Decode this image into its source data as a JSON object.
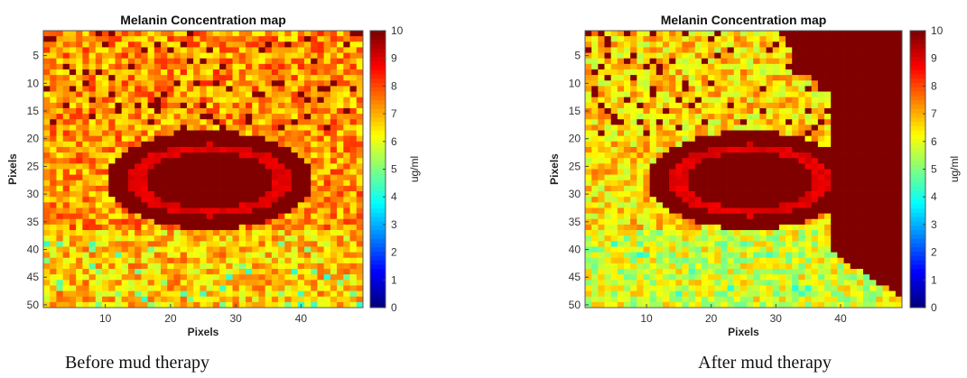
{
  "chart_data": [
    {
      "type": "heatmap",
      "title": "Melanin Concentration map",
      "xlabel": "Pixels",
      "ylabel": "Pixels",
      "caption": "Before mud therapy",
      "xlim": [
        0.5,
        49.5
      ],
      "ylim": [
        0.5,
        50.5
      ],
      "x_ticks": [
        10,
        20,
        30,
        40
      ],
      "y_ticks": [
        5,
        10,
        15,
        20,
        25,
        30,
        35,
        40,
        45,
        50
      ],
      "grid_size": [
        49,
        50
      ],
      "colorbar": {
        "label": "ug/ml",
        "range": [
          0,
          10
        ],
        "ticks": [
          0,
          1,
          2,
          3,
          4,
          5,
          6,
          7,
          8,
          9,
          10
        ],
        "colormap": "jet"
      },
      "regions": {
        "background_top": 7.3,
        "background_bottom": 6.8,
        "lesion_outer": 10,
        "lesion_rim": 9.0,
        "lesion_core": 10,
        "low_patches": 4.2
      }
    },
    {
      "type": "heatmap",
      "title": "Melanin Concentration map",
      "xlabel": "Pixels",
      "ylabel": "Pixels",
      "caption": "After mud therapy",
      "xlim": [
        0.5,
        49.5
      ],
      "ylim": [
        0.5,
        50.5
      ],
      "x_ticks": [
        10,
        20,
        30,
        40
      ],
      "y_ticks": [
        5,
        10,
        15,
        20,
        25,
        30,
        35,
        40,
        45,
        50
      ],
      "grid_size": [
        49,
        50
      ],
      "colorbar": {
        "label": "ug/ml",
        "range": [
          0,
          10
        ],
        "ticks": [
          0,
          1,
          2,
          3,
          4,
          5,
          6,
          7,
          8,
          9,
          10
        ],
        "colormap": "jet"
      },
      "regions": {
        "background_top": 6.6,
        "background_bottom": 5.9,
        "lesion_outer": 10,
        "lesion_rim": 9.0,
        "lesion_core": 10,
        "low_patches": 4.0
      }
    }
  ]
}
